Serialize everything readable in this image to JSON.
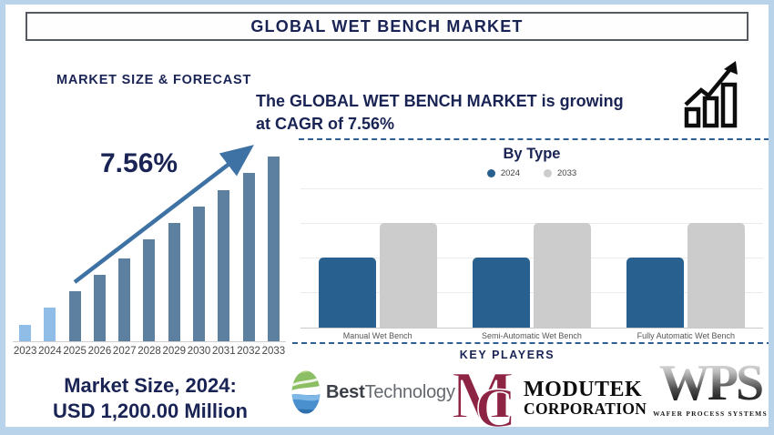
{
  "page": {
    "border_color": "#b9d4ea",
    "accent_navy": "#192354"
  },
  "header": {
    "title": "GLOBAL WET BENCH MARKET"
  },
  "left_panel": {
    "heading": "MARKET SIZE & FORECAST",
    "cagr_callout": "7.56%",
    "market_size": {
      "line1": "Market Size, 2024:",
      "line2": "USD 1,200.00 Million"
    }
  },
  "right_panel": {
    "growth_note_line1": "The GLOBAL WET BENCH MARKET is growing",
    "growth_note_line2": "at CAGR of 7.56%"
  },
  "by_type": {
    "title": "By Type"
  },
  "key_players": {
    "title": "KEY PLAYERS",
    "players": [
      {
        "name": "Best Technology",
        "text_bold": "Best",
        "text_regular": "Technology"
      },
      {
        "name": "Modutek Corporation",
        "monogram_m": "M",
        "monogram_c": "C",
        "line1": "MODUTEK",
        "line2": "CORPORATION",
        "color": "#8e2444"
      },
      {
        "name": "Wafer Process Systems",
        "acronym": "WPS",
        "subtitle": "WAFER PROCESS SYSTEMS"
      }
    ]
  },
  "chart_data": [
    {
      "type": "bar",
      "title": "MARKET SIZE & FORECAST",
      "x": [
        "2023",
        "2024",
        "2025",
        "2026",
        "2027",
        "2028",
        "2029",
        "2030",
        "2031",
        "2032",
        "2033"
      ],
      "values_pct_of_max": [
        9,
        18,
        27,
        36,
        45,
        55,
        64,
        73,
        82,
        91,
        100
      ],
      "anchor_point": {
        "year": "2024",
        "value": "USD 1,200.00 Million"
      },
      "cagr_pct": 7.56,
      "bar_color": "#5d80a0",
      "highlight_color": "#8fbde8",
      "highlight_years": [
        "2023",
        "2024"
      ],
      "grid": false,
      "xlabel": "",
      "ylabel": ""
    },
    {
      "type": "bar",
      "title": "By Type",
      "categories": [
        "Manual Wet Bench",
        "Semi-Automatic Wet Bench",
        "Fully Automatic Wet Bench"
      ],
      "series": [
        {
          "name": "2024",
          "color": "#28618f",
          "values": [
            2,
            2,
            2
          ]
        },
        {
          "name": "2033",
          "color": "#cccccc",
          "values": [
            3,
            3,
            3
          ]
        }
      ],
      "ylim": [
        0,
        4
      ],
      "grid": true,
      "legend_position": "top"
    }
  ]
}
